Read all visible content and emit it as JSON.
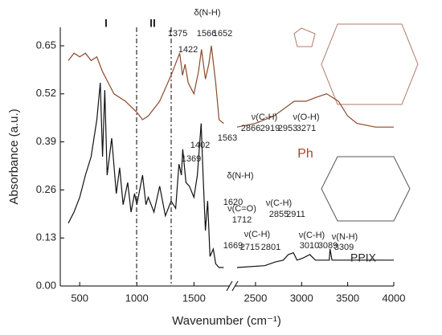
{
  "chart_data": {
    "type": "line",
    "xlabel": "Wavenumber (cm⁻¹)",
    "ylabel": "Absorbance (a.u.)",
    "xlim": [
      330,
      4000
    ],
    "axis_break": [
      1800,
      2300
    ],
    "ylim": [
      0,
      0.7
    ],
    "xticks": [
      500,
      1000,
      1500,
      2500,
      3000,
      3500,
      4000
    ],
    "yticks": [
      {
        "value": 0,
        "label": "0.00"
      },
      0.13,
      0.26,
      0.39,
      0.52,
      0.65
    ],
    "series": [
      {
        "name": "Ph",
        "color": "#8b4a2b",
        "x": [
          400,
          450,
          500,
          550,
          600,
          650,
          700,
          750,
          800,
          900,
          1000,
          1050,
          1100,
          1200,
          1300,
          1375,
          1400,
          1422,
          1450,
          1500,
          1540,
          1566,
          1600,
          1630,
          1652,
          1690,
          1720,
          1760,
          2000,
          2300,
          2500,
          2700,
          2866,
          2919,
          2953,
          3050,
          3150,
          3271,
          3400,
          3500,
          3600,
          3800,
          4000
        ],
        "values": [
          0.61,
          0.63,
          0.62,
          0.63,
          0.61,
          0.62,
          0.58,
          0.55,
          0.52,
          0.5,
          0.47,
          0.45,
          0.46,
          0.5,
          0.57,
          0.63,
          0.57,
          0.6,
          0.55,
          0.52,
          0.58,
          0.64,
          0.56,
          0.6,
          0.65,
          0.55,
          0.45,
          0.44,
          null,
          0.43,
          0.44,
          0.46,
          0.49,
          0.5,
          0.5,
          0.5,
          0.51,
          0.52,
          0.5,
          0.46,
          0.44,
          0.43,
          0.43
        ]
      },
      {
        "name": "PPIX",
        "color": "#111111",
        "x": [
          400,
          450,
          500,
          550,
          600,
          650,
          680,
          700,
          720,
          740,
          780,
          820,
          850,
          880,
          920,
          950,
          980,
          1000,
          1050,
          1080,
          1100,
          1150,
          1200,
          1250,
          1300,
          1340,
          1369,
          1390,
          1402,
          1430,
          1460,
          1500,
          1530,
          1563,
          1580,
          1600,
          1620,
          1640,
          1669,
          1690,
          1720,
          1760,
          2000,
          2300,
          2600,
          2715,
          2801,
          2855,
          2911,
          2950,
          3010,
          3089,
          3150,
          3300,
          3309,
          3330,
          4000
        ],
        "values": [
          0.17,
          0.2,
          0.24,
          0.3,
          0.35,
          0.45,
          0.55,
          0.35,
          0.53,
          0.3,
          0.4,
          0.25,
          0.32,
          0.22,
          0.28,
          0.2,
          0.25,
          0.22,
          0.3,
          0.22,
          0.24,
          0.2,
          0.27,
          0.19,
          0.23,
          0.21,
          0.33,
          0.3,
          0.37,
          0.28,
          0.27,
          0.24,
          0.3,
          0.44,
          0.3,
          0.15,
          0.23,
          0.08,
          0.1,
          0.06,
          0.05,
          0.05,
          null,
          0.05,
          0.055,
          0.065,
          0.07,
          0.085,
          0.09,
          0.07,
          0.075,
          0.085,
          0.07,
          0.07,
          0.1,
          0.07,
          0.07
        ]
      }
    ],
    "annotations": [
      "I",
      "II",
      "1375",
      "1422",
      "δ(N-H)",
      "1566",
      "1652",
      "ν(C-H)",
      "2866",
      "2919",
      "2953",
      "ν(O-H)",
      "3271",
      "Ph",
      "1563",
      "1402",
      "1369",
      "δ(N-H)",
      "1620",
      "1669",
      "ν(C=O)",
      "1712",
      "ν(C-H)",
      "2715",
      "2801",
      "ν(C-H)",
      "2855",
      "2911",
      "ν(C-H)",
      "3010",
      "3089",
      "ν(N-H)",
      "3309",
      "PPIX"
    ]
  }
}
